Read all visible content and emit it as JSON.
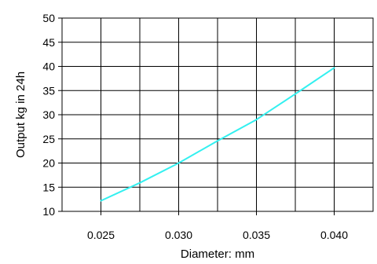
{
  "chart_data": {
    "type": "line",
    "xlabel": "Diameter: mm",
    "ylabel": "Output kg in 24h",
    "x_ticks": [
      "0.025",
      "0.030",
      "0.035",
      "0.040"
    ],
    "y_ticks": [
      "10",
      "15",
      "20",
      "25",
      "30",
      "35",
      "40",
      "45",
      "50"
    ],
    "xlim": [
      0.0225,
      0.0425
    ],
    "ylim": [
      10,
      50
    ],
    "grid": true,
    "series": [
      {
        "color": "#33f0f0",
        "x": [
          0.025,
          0.0275,
          0.03,
          0.0325,
          0.035,
          0.0375,
          0.04
        ],
        "y": [
          12.2,
          15.9,
          20.0,
          24.6,
          29.0,
          34.3,
          39.7
        ]
      }
    ]
  }
}
